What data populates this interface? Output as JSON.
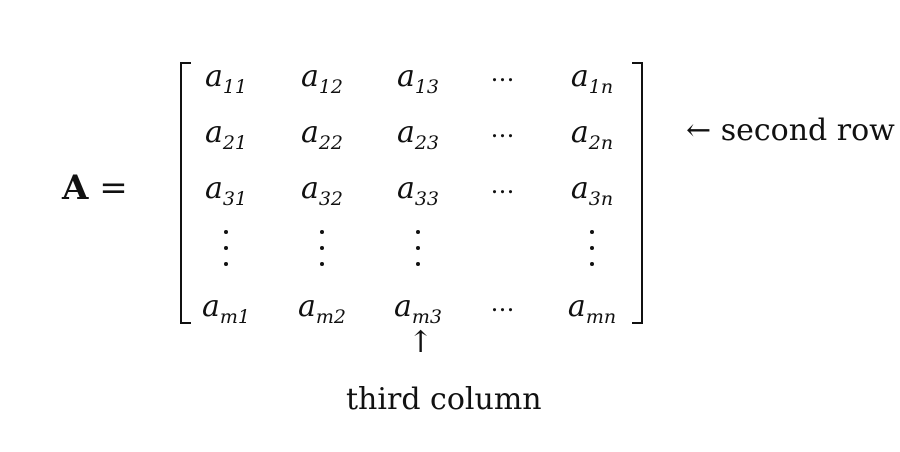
{
  "equation": {
    "matrix_symbol": "A",
    "equals": "="
  },
  "matrix": {
    "rows": [
      [
        {
          "base": "a",
          "sub": "11"
        },
        {
          "base": "a",
          "sub": "12"
        },
        {
          "base": "a",
          "sub": "13"
        },
        {
          "ellipsis": "…"
        },
        {
          "base": "a",
          "sub": "1n"
        }
      ],
      [
        {
          "base": "a",
          "sub": "21"
        },
        {
          "base": "a",
          "sub": "22"
        },
        {
          "base": "a",
          "sub": "23"
        },
        {
          "ellipsis": "…"
        },
        {
          "base": "a",
          "sub": "2n"
        }
      ],
      [
        {
          "base": "a",
          "sub": "31"
        },
        {
          "base": "a",
          "sub": "32"
        },
        {
          "base": "a",
          "sub": "33"
        },
        {
          "ellipsis": "…"
        },
        {
          "base": "a",
          "sub": "3n"
        }
      ],
      [
        {
          "base": "a",
          "sub": "m1"
        },
        {
          "base": "a",
          "sub": "m2"
        },
        {
          "base": "a",
          "sub": "m3"
        },
        {
          "ellipsis": "…"
        },
        {
          "base": "a",
          "sub": "mn"
        }
      ]
    ]
  },
  "annotations": {
    "row_arrow": "←",
    "row_label": "second row",
    "column_arrow": "↑",
    "column_label": "third column"
  }
}
